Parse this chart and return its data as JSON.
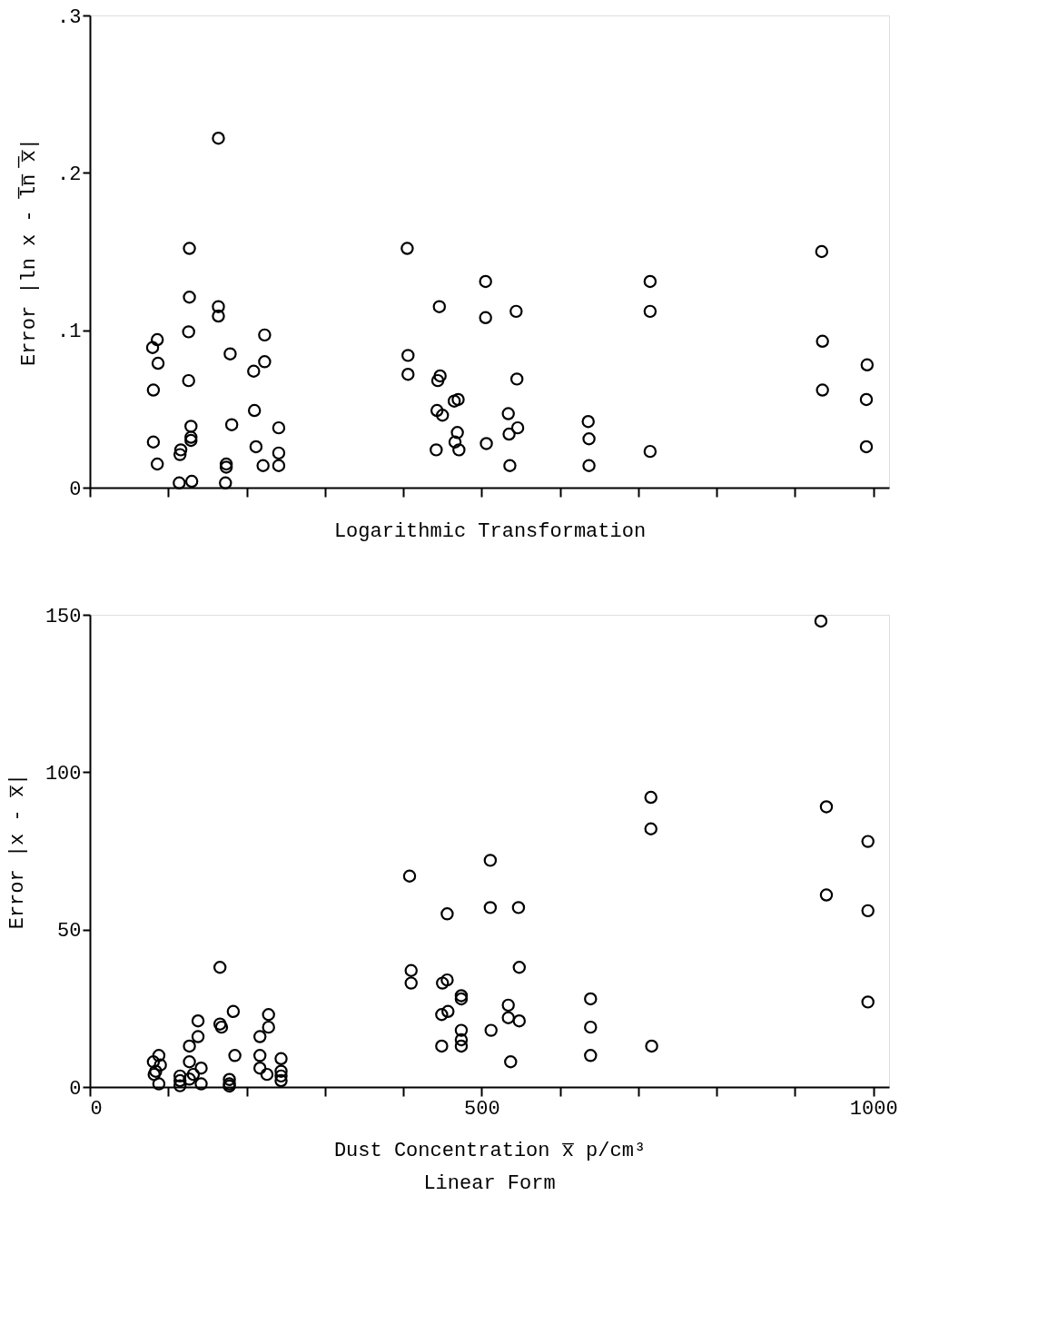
{
  "chart_data": [
    {
      "type": "scatter",
      "xlabel": "Logarithmic Transformation",
      "ylabel": "Error |ln x - l̅n̅ ̅x̅|",
      "xlim": [
        0,
        1020
      ],
      "ylim": [
        0,
        0.3
      ],
      "xticks": [
        {
          "value": 0,
          "label": null
        },
        {
          "value": 100,
          "label": null
        },
        {
          "value": 200,
          "label": null
        },
        {
          "value": 300,
          "label": null
        },
        {
          "value": 400,
          "label": null
        },
        {
          "value": 500,
          "label": null
        },
        {
          "value": 600,
          "label": null
        },
        {
          "value": 700,
          "label": null
        },
        {
          "value": 800,
          "label": null
        },
        {
          "value": 900,
          "label": null
        },
        {
          "value": 1000,
          "label": null
        }
      ],
      "yticks": [
        {
          "value": 0,
          "label": "0"
        },
        {
          "value": 0.1,
          "label": ".1"
        },
        {
          "value": 0.2,
          "label": ".2"
        },
        {
          "value": 0.3,
          "label": ".3"
        }
      ],
      "tick_labels": "y",
      "grid": false,
      "marker": "circle",
      "series": [
        {
          "color": "#000000",
          "x": [
            80,
            86,
            87,
            81,
            81,
            86,
            115,
            116,
            114,
            127,
            127,
            126,
            126,
            129,
            129,
            129,
            130,
            164,
            164,
            164,
            179,
            181,
            174,
            174,
            173,
            209,
            223,
            223,
            210,
            212,
            221,
            241,
            241,
            241,
            405,
            406,
            406,
            446,
            447,
            444,
            443,
            450,
            465,
            470,
            469,
            466,
            471,
            442,
            505,
            505,
            544,
            545,
            506,
            534,
            546,
            535,
            536,
            636,
            637,
            637,
            715,
            715,
            715,
            934,
            935,
            935,
            992,
            991,
            991
          ],
          "values": [
            0.089,
            0.094,
            0.079,
            0.062,
            0.029,
            0.015,
            0.021,
            0.024,
            0.003,
            0.152,
            0.121,
            0.099,
            0.068,
            0.039,
            0.032,
            0.03,
            0.004,
            0.222,
            0.115,
            0.109,
            0.085,
            0.04,
            0.015,
            0.013,
            0.003,
            0.074,
            0.097,
            0.08,
            0.049,
            0.026,
            0.014,
            0.038,
            0.022,
            0.014,
            0.152,
            0.084,
            0.072,
            0.115,
            0.071,
            0.068,
            0.049,
            0.046,
            0.055,
            0.056,
            0.035,
            0.029,
            0.024,
            0.024,
            0.131,
            0.108,
            0.112,
            0.069,
            0.028,
            0.047,
            0.038,
            0.034,
            0.014,
            0.042,
            0.031,
            0.014,
            0.131,
            0.112,
            0.023,
            0.15,
            0.093,
            0.062,
            0.078,
            0.056,
            0.026
          ]
        }
      ]
    },
    {
      "type": "scatter",
      "xlabel": "Dust Concentration x̅ p/cm³",
      "ylabel": "Error |x - x̅|",
      "annotations": [
        "Linear Form"
      ],
      "xlim": [
        0,
        1020
      ],
      "ylim": [
        0,
        150
      ],
      "xticks": [
        0,
        {
          "value": 100,
          "label": null
        },
        {
          "value": 200,
          "label": null
        },
        {
          "value": 300,
          "label": null
        },
        {
          "value": 400,
          "label": null
        },
        500,
        {
          "value": 600,
          "label": null
        },
        {
          "value": 700,
          "label": null
        },
        {
          "value": 800,
          "label": null
        },
        {
          "value": 900,
          "label": null
        },
        1000
      ],
      "yticks": [
        0,
        50,
        100,
        150
      ],
      "grid": false,
      "marker": "circle",
      "series": [
        {
          "color": "#000000",
          "x": [
            81,
            88,
            84,
            82,
            90,
            88,
            115,
            115,
            115,
            138,
            138,
            127,
            127,
            142,
            142,
            127,
            132,
            166,
            166,
            168,
            183,
            185,
            178,
            178,
            178,
            228,
            228,
            217,
            217,
            217,
            226,
            244,
            244,
            244,
            244,
            408,
            410,
            410,
            456,
            450,
            456,
            474,
            474,
            449,
            457,
            449,
            474,
            474,
            474,
            511,
            511,
            547,
            548,
            534,
            534,
            548,
            512,
            537,
            639,
            639,
            639,
            716,
            716,
            717,
            933,
            940,
            940,
            993,
            993,
            993
          ],
          "values": [
            8,
            10,
            5,
            4,
            7,
            1,
            3.5,
            2,
            0.4,
            21,
            16,
            13,
            8,
            6,
            1,
            2.5,
            4,
            38,
            20,
            19,
            24,
            10,
            2.4,
            1,
            0.3,
            23,
            19,
            16,
            10,
            6,
            4,
            9,
            5,
            3.5,
            2,
            67,
            37,
            33,
            55,
            33,
            34,
            29,
            28,
            23,
            24,
            13,
            18,
            15,
            13,
            72,
            57,
            57,
            38,
            26,
            22,
            21,
            18,
            8,
            28,
            19,
            10,
            92,
            82,
            13,
            148,
            89,
            61,
            78,
            56,
            27
          ]
        }
      ]
    }
  ]
}
